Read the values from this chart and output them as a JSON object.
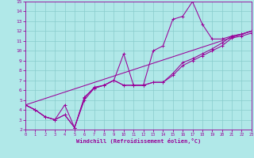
{
  "background_color": "#b0e8e8",
  "line_color": "#990099",
  "grid_color": "#88cccc",
  "xlabel": "Windchill (Refroidissement éolien,°C)",
  "xlim": [
    0,
    23
  ],
  "ylim": [
    2,
    15
  ],
  "xticks": [
    0,
    1,
    2,
    3,
    4,
    5,
    6,
    7,
    8,
    9,
    10,
    11,
    12,
    13,
    14,
    15,
    16,
    17,
    18,
    19,
    20,
    21,
    22,
    23
  ],
  "yticks": [
    2,
    3,
    4,
    5,
    6,
    7,
    8,
    9,
    10,
    11,
    12,
    13,
    14,
    15
  ],
  "line1_x": [
    0,
    1,
    2,
    3,
    4,
    5,
    6,
    7,
    8,
    9,
    10,
    11,
    12,
    13,
    14,
    15,
    16,
    17,
    18,
    19,
    20,
    21,
    22,
    23
  ],
  "line1_y": [
    4.5,
    4.0,
    3.3,
    3.0,
    4.5,
    2.2,
    5.3,
    6.2,
    6.5,
    7.0,
    9.7,
    6.5,
    6.5,
    10.0,
    10.5,
    13.2,
    13.5,
    15.0,
    12.7,
    11.2,
    11.2,
    11.5,
    11.7,
    12.0
  ],
  "line2_x": [
    0,
    1,
    2,
    3,
    4,
    5,
    6,
    7,
    8,
    9,
    10,
    11,
    12,
    13,
    14,
    15,
    16,
    17,
    18,
    19,
    20,
    21,
    22,
    23
  ],
  "line2_y": [
    4.5,
    4.0,
    3.3,
    3.0,
    3.5,
    2.2,
    5.0,
    6.2,
    6.5,
    7.0,
    6.5,
    6.5,
    6.5,
    6.8,
    6.8,
    7.5,
    8.5,
    9.0,
    9.5,
    10.0,
    10.5,
    11.3,
    11.5,
    11.8
  ],
  "line3_x": [
    0,
    1,
    2,
    3,
    4,
    5,
    6,
    7,
    8,
    9,
    10,
    11,
    12,
    13,
    14,
    15,
    16,
    17,
    18,
    19,
    20,
    21,
    22,
    23
  ],
  "line3_y": [
    4.5,
    4.0,
    3.3,
    3.0,
    3.5,
    2.2,
    5.2,
    6.3,
    6.5,
    7.0,
    6.5,
    6.5,
    6.5,
    6.8,
    6.8,
    7.7,
    8.8,
    9.2,
    9.7,
    10.2,
    10.8,
    11.5,
    11.7,
    12.0
  ],
  "line4_x": [
    0,
    23
  ],
  "line4_y": [
    4.5,
    12.0
  ]
}
